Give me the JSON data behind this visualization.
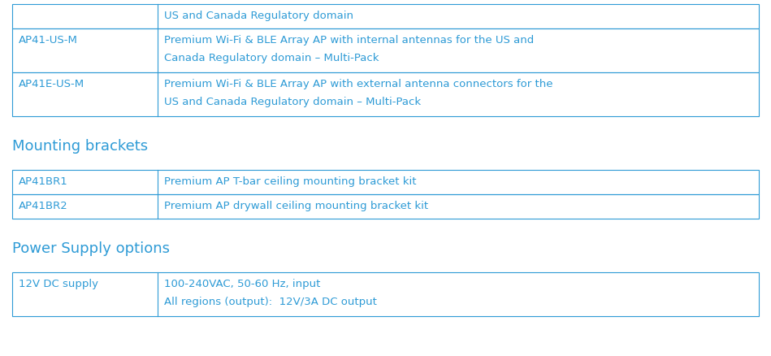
{
  "bg_color": "#ffffff",
  "text_color": "#2E9BD6",
  "border_color": "#2E9BD6",
  "font_size": 9.5,
  "section_header_font_size": 13,
  "sections": [
    {
      "header": null,
      "rows": [
        [
          "",
          "US and Canada Regulatory domain"
        ],
        [
          "AP41-US-M",
          "Premium Wi-Fi & BLE Array AP with internal antennas for the US and\nCanada Regulatory domain – Multi-Pack"
        ],
        [
          "AP41E-US-M",
          "Premium Wi-Fi & BLE Array AP with external antenna connectors for the\nUS and Canada Regulatory domain – Multi-Pack"
        ]
      ]
    },
    {
      "header": "Mounting brackets",
      "rows": [
        [
          "AP41BR1",
          "Premium AP T-bar ceiling mounting bracket kit"
        ],
        [
          "AP41BR2",
          "Premium AP drywall ceiling mounting bracket kit"
        ]
      ]
    },
    {
      "header": "Power Supply options",
      "rows": [
        [
          "12V DC supply",
          "100-240VAC, 50-60 Hz, input\nAll regions (output):  12V/3A DC output"
        ]
      ]
    }
  ]
}
